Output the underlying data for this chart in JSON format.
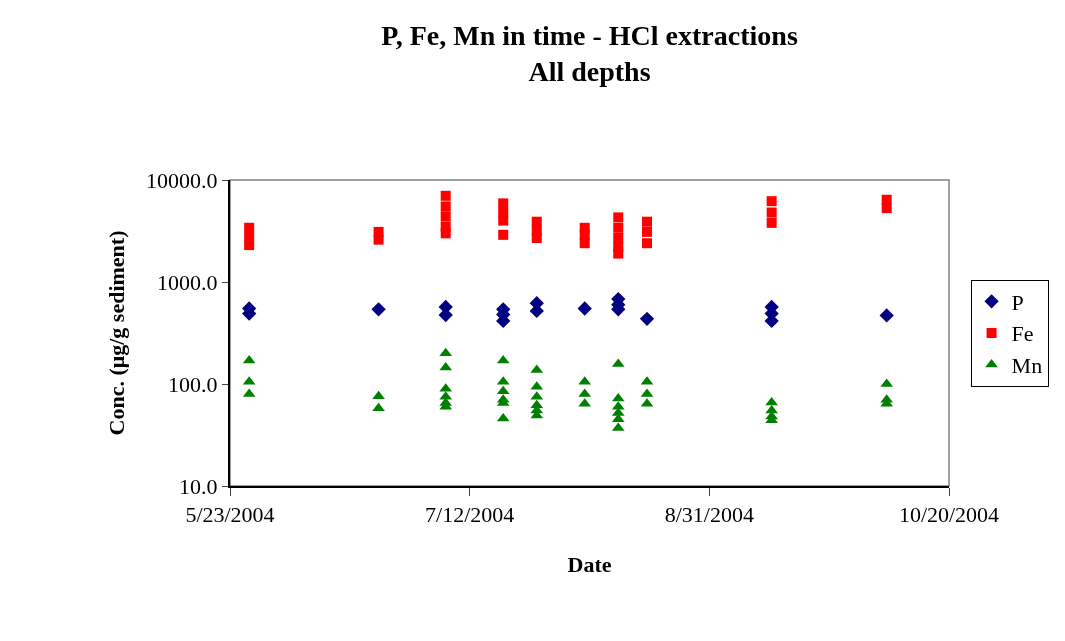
{
  "chart_data": {
    "type": "scatter",
    "title": "P, Fe, Mn in time - HCl extractions",
    "subtitle": "All depths",
    "xlabel": "Date",
    "ylabel": "Conc. (μg/g sediment)",
    "log": "y",
    "grid": false,
    "legend": "right",
    "xlim": [
      "2004-05-23",
      "2004-10-20"
    ],
    "xticks": [
      {
        "value": "2004-05-23",
        "label": "5/23/2004"
      },
      {
        "value": "2004-07-12",
        "label": "7/12/2004"
      },
      {
        "value": "2004-08-31",
        "label": "8/31/2004"
      },
      {
        "value": "2004-10-20",
        "label": "10/20/2004"
      }
    ],
    "ylim": [
      10,
      10000
    ],
    "yticks": [
      {
        "value": 10,
        "label": "10.0"
      },
      {
        "value": 100,
        "label": "100.0"
      },
      {
        "value": 1000,
        "label": "1000.0"
      },
      {
        "value": 10000,
        "label": "10000.0"
      }
    ],
    "series": [
      {
        "name": "P",
        "color": "#000080",
        "marker": "diamond",
        "x": [
          "2004-05-27",
          "2004-05-27",
          "2004-06-23",
          "2004-07-07",
          "2004-07-07",
          "2004-07-19",
          "2004-07-19",
          "2004-07-19",
          "2004-07-26",
          "2004-07-26",
          "2004-08-05",
          "2004-08-12",
          "2004-08-12",
          "2004-08-12",
          "2004-08-18",
          "2004-09-13",
          "2004-09-13",
          "2004-09-13",
          "2004-10-07"
        ],
        "values": [
          550,
          490,
          540,
          570,
          475,
          540,
          480,
          415,
          620,
          520,
          550,
          680,
          600,
          540,
          435,
          570,
          490,
          415,
          470
        ]
      },
      {
        "name": "Fe",
        "color": "#ff0000",
        "marker": "square",
        "x": [
          "2004-05-27",
          "2004-05-27",
          "2004-05-27",
          "2004-06-23",
          "2004-06-23",
          "2004-07-07",
          "2004-07-07",
          "2004-07-07",
          "2004-07-07",
          "2004-07-07",
          "2004-07-19",
          "2004-07-19",
          "2004-07-19",
          "2004-07-19",
          "2004-07-26",
          "2004-07-26",
          "2004-07-26",
          "2004-08-05",
          "2004-08-05",
          "2004-08-05",
          "2004-08-12",
          "2004-08-12",
          "2004-08-12",
          "2004-08-12",
          "2004-08-12",
          "2004-08-18",
          "2004-08-18",
          "2004-08-18",
          "2004-09-13",
          "2004-09-13",
          "2004-09-13",
          "2004-10-07",
          "2004-10-07"
        ],
        "values": [
          3400,
          2800,
          2300,
          3100,
          2600,
          7000,
          5500,
          4400,
          3500,
          3000,
          5900,
          4800,
          4000,
          2900,
          3900,
          3200,
          2700,
          3400,
          2900,
          2400,
          4300,
          3400,
          2700,
          2200,
          1900,
          3900,
          3100,
          2400,
          6200,
          4800,
          3800,
          6400,
          5300
        ]
      },
      {
        "name": "Mn",
        "color": "#008000",
        "marker": "triangle",
        "x": [
          "2004-05-27",
          "2004-05-27",
          "2004-05-27",
          "2004-06-23",
          "2004-06-23",
          "2004-07-07",
          "2004-07-07",
          "2004-07-07",
          "2004-07-07",
          "2004-07-07",
          "2004-07-07",
          "2004-07-19",
          "2004-07-19",
          "2004-07-19",
          "2004-07-19",
          "2004-07-19",
          "2004-07-19",
          "2004-07-26",
          "2004-07-26",
          "2004-07-26",
          "2004-07-26",
          "2004-07-26",
          "2004-07-26",
          "2004-08-05",
          "2004-08-05",
          "2004-08-05",
          "2004-08-12",
          "2004-08-12",
          "2004-08-12",
          "2004-08-12",
          "2004-08-12",
          "2004-08-12",
          "2004-08-18",
          "2004-08-18",
          "2004-08-18",
          "2004-09-13",
          "2004-09-13",
          "2004-09-13",
          "2004-09-13",
          "2004-10-07",
          "2004-10-07",
          "2004-10-07"
        ],
        "values": [
          170,
          105,
          80,
          76,
          58,
          200,
          145,
          90,
          75,
          65,
          60,
          170,
          105,
          85,
          70,
          65,
          46,
          137,
          94,
          75,
          62,
          55,
          49,
          105,
          80,
          64,
          157,
          72,
          60,
          52,
          45,
          37,
          105,
          80,
          64,
          66,
          55,
          48,
          44,
          100,
          70,
          64
        ]
      }
    ]
  }
}
